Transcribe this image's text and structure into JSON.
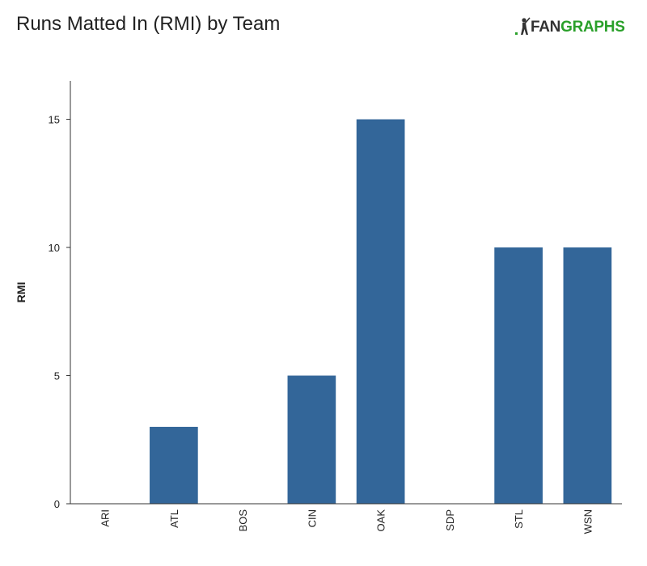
{
  "header": {
    "title": "Runs Matted In (RMI) by Team",
    "logo": {
      "icon": "fangraphs-logo",
      "text_fan": "FAN",
      "text_graphs": "GRAPHS"
    }
  },
  "colors": {
    "bar": "#336699",
    "axis": "#333333",
    "brand_green": "#2aa02a"
  },
  "chart_data": {
    "type": "bar",
    "title": "Runs Matted In (RMI) by Team",
    "xlabel": "",
    "ylabel": "RMI",
    "categories": [
      "ARI",
      "ATL",
      "BOS",
      "CIN",
      "OAK",
      "SDP",
      "STL",
      "WSN"
    ],
    "values": [
      0,
      3,
      0,
      5,
      15,
      0,
      10,
      10
    ],
    "ylim": [
      0,
      16.5
    ],
    "yticks": [
      0,
      5,
      10,
      15
    ],
    "grid": false,
    "legend": "none"
  }
}
